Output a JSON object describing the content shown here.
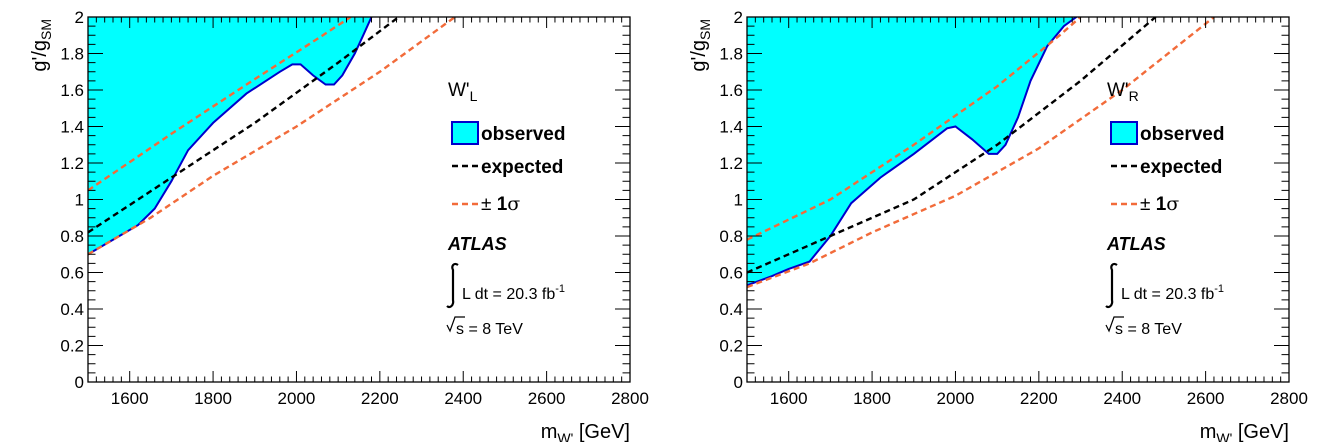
{
  "chart_data": [
    {
      "type": "area",
      "title": "W'_L",
      "title_main": "W'",
      "title_sub": "L",
      "xlabel_main": "m",
      "xlabel_sub": "W'",
      "xlabel_unit": "[GeV]",
      "ylabel_main": "g'/g",
      "ylabel_sub": "SM",
      "xlim": [
        1500,
        2800
      ],
      "ylim": [
        0,
        2
      ],
      "x_ticks": [
        1600,
        1800,
        2000,
        2200,
        2400,
        2600,
        2800
      ],
      "y_ticks": [
        0,
        0.2,
        0.4,
        0.6,
        0.8,
        1,
        1.2,
        1.4,
        1.6,
        1.8,
        2
      ],
      "legend_placement": "right",
      "legend": {
        "observed": "observed",
        "expected": "expected",
        "sigma_prefix": "±",
        "sigma_value": "1",
        "sigma_symbol": "σ"
      },
      "annotation": {
        "experiment": "ATLAS",
        "lumi_text": "L dt = 20.3 fb",
        "lumi_exp": "-1",
        "sqrt_s": "s = 8 TeV"
      },
      "colors": {
        "observed_fill": "#00ffff",
        "observed_line": "#0000cc",
        "expected": "#000000",
        "sigma": "#f26b3a"
      },
      "series": [
        {
          "name": "observed",
          "style": "filled",
          "x": [
            1500,
            1560,
            1620,
            1660,
            1700,
            1740,
            1800,
            1880,
            1960,
            1990,
            2010,
            2040,
            2070,
            2090,
            2110,
            2140,
            2160,
            2180
          ],
          "y": [
            0.7,
            0.78,
            0.86,
            0.95,
            1.1,
            1.27,
            1.42,
            1.58,
            1.7,
            1.74,
            1.74,
            1.68,
            1.63,
            1.63,
            1.68,
            1.8,
            1.9,
            2.0
          ]
        },
        {
          "name": "expected",
          "style": "dashed",
          "x": [
            1500,
            1700,
            1900,
            2100,
            2245
          ],
          "y": [
            0.82,
            1.12,
            1.42,
            1.75,
            2.0
          ]
        },
        {
          "name": "+1σ",
          "style": "dashed",
          "x": [
            1500,
            1700,
            1900,
            2050,
            2130
          ],
          "y": [
            1.05,
            1.36,
            1.66,
            1.88,
            2.0
          ]
        },
        {
          "name": "-1σ",
          "style": "dashed",
          "x": [
            1500,
            1650,
            1800,
            2000,
            2200,
            2380
          ],
          "y": [
            0.7,
            0.9,
            1.13,
            1.4,
            1.7,
            2.0
          ]
        }
      ]
    },
    {
      "type": "area",
      "title": "W'_R",
      "title_main": "W'",
      "title_sub": "R",
      "xlabel_main": "m",
      "xlabel_sub": "W'",
      "xlabel_unit": "[GeV]",
      "ylabel_main": "g'/g",
      "ylabel_sub": "SM",
      "xlim": [
        1500,
        2800
      ],
      "ylim": [
        0,
        2
      ],
      "x_ticks": [
        1600,
        1800,
        2000,
        2200,
        2400,
        2600,
        2800
      ],
      "y_ticks": [
        0,
        0.2,
        0.4,
        0.6,
        0.8,
        1,
        1.2,
        1.4,
        1.6,
        1.8,
        2
      ],
      "legend_placement": "right",
      "legend": {
        "observed": "observed",
        "expected": "expected",
        "sigma_prefix": "±",
        "sigma_value": "1",
        "sigma_symbol": "σ"
      },
      "annotation": {
        "experiment": "ATLAS",
        "lumi_text": "L dt = 20.3 fb",
        "lumi_exp": "-1",
        "sqrt_s": "s = 8 TeV"
      },
      "colors": {
        "observed_fill": "#00ffff",
        "observed_line": "#0000cc",
        "expected": "#000000",
        "sigma": "#f26b3a"
      },
      "series": [
        {
          "name": "observed",
          "style": "filled",
          "x": [
            1500,
            1560,
            1600,
            1650,
            1700,
            1750,
            1820,
            1900,
            1980,
            2000,
            2040,
            2080,
            2100,
            2120,
            2150,
            2180,
            2220,
            2260,
            2290
          ],
          "y": [
            0.53,
            0.58,
            0.62,
            0.66,
            0.8,
            0.98,
            1.12,
            1.25,
            1.39,
            1.4,
            1.33,
            1.25,
            1.25,
            1.3,
            1.45,
            1.65,
            1.84,
            1.95,
            2.0
          ]
        },
        {
          "name": "expected",
          "style": "dashed",
          "x": [
            1500,
            1700,
            1900,
            2100,
            2300,
            2480
          ],
          "y": [
            0.6,
            0.8,
            1.0,
            1.3,
            1.65,
            2.0
          ]
        },
        {
          "name": "+1σ",
          "style": "dashed",
          "x": [
            1500,
            1700,
            1900,
            2100,
            2250,
            2300
          ],
          "y": [
            0.78,
            1.0,
            1.3,
            1.62,
            1.9,
            2.0
          ]
        },
        {
          "name": "-1σ",
          "style": "dashed",
          "x": [
            1500,
            1650,
            1800,
            2000,
            2200,
            2400,
            2620
          ],
          "y": [
            0.52,
            0.65,
            0.82,
            1.02,
            1.28,
            1.6,
            2.0
          ]
        }
      ]
    }
  ]
}
